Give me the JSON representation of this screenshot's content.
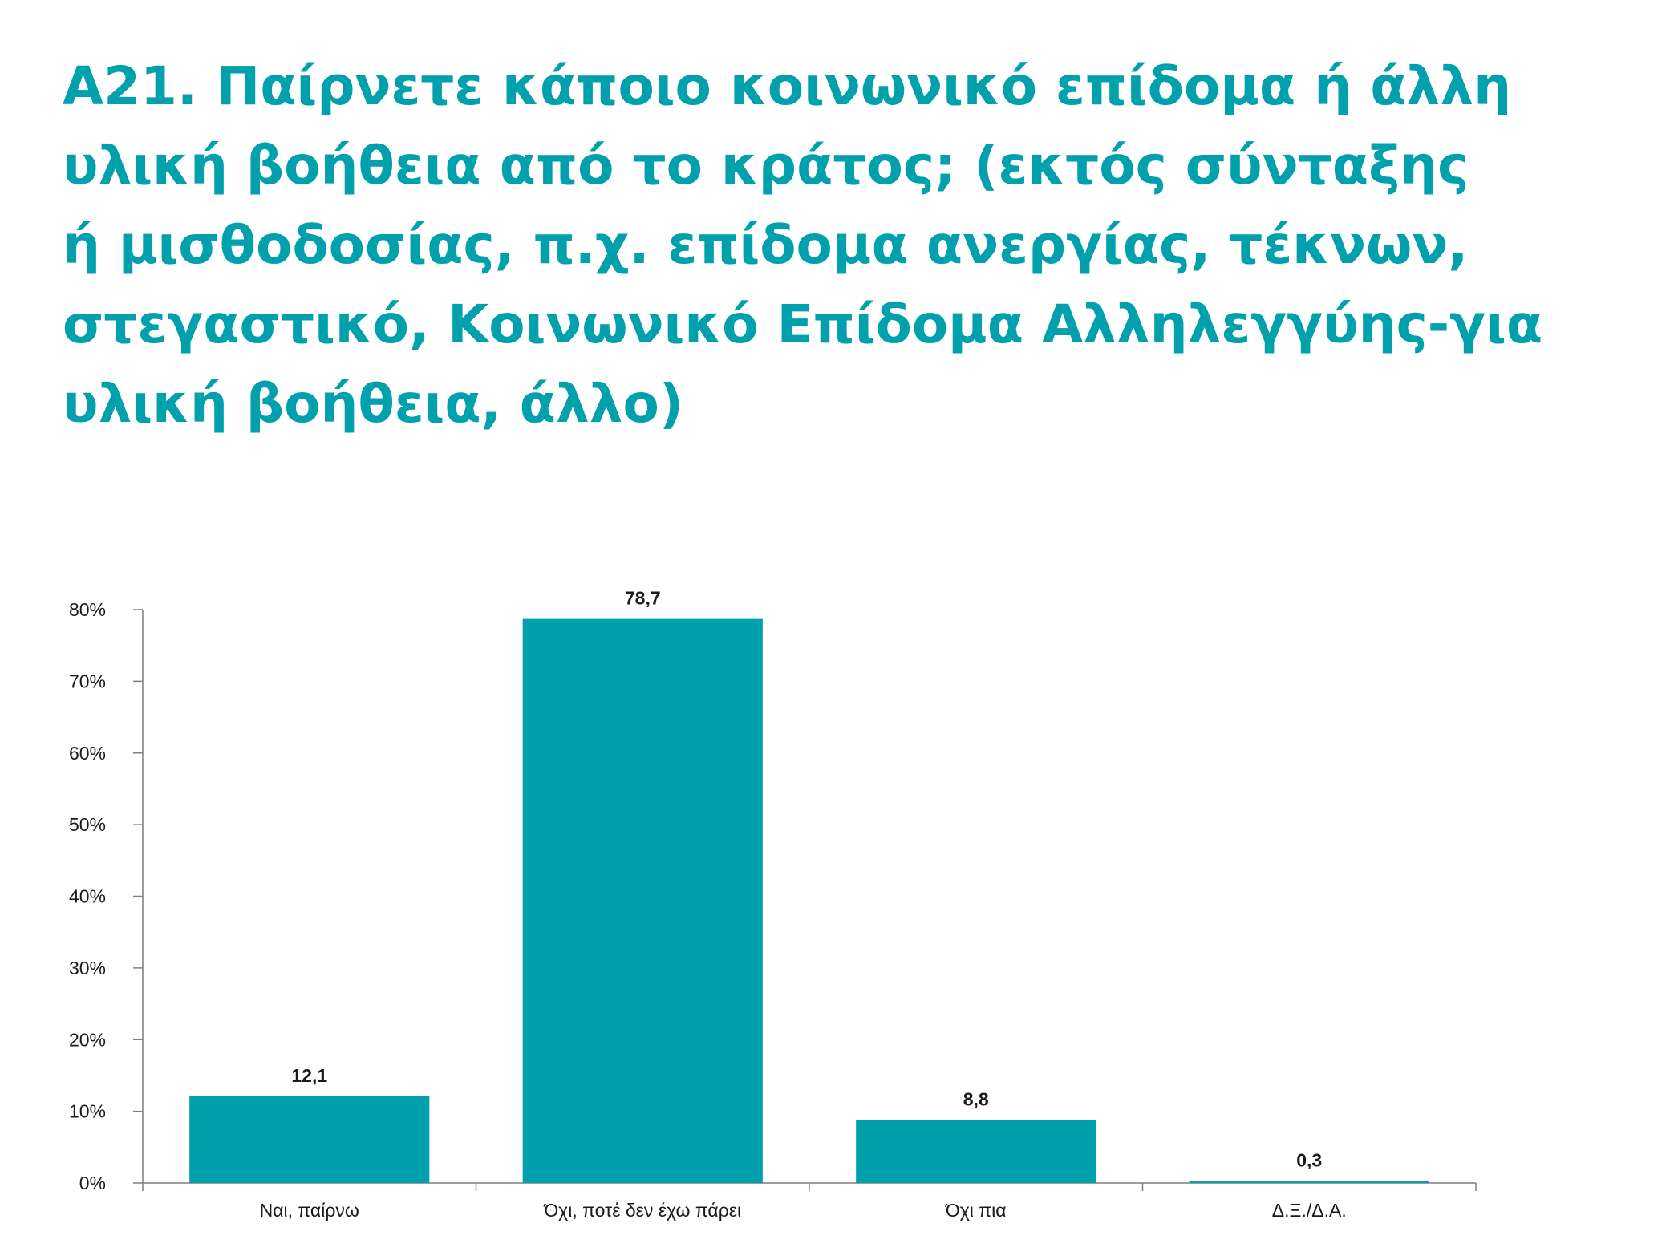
{
  "colors": {
    "accent": "#00a0ad",
    "axis": "#7f7f7f",
    "text": "#1a1a1a"
  },
  "title_lines": [
    "Α21. Παίρνετε κάποιο κοινωνικό επίδομα ή άλλη",
    "υλική βοήθεια από το κράτος; (εκτός σύνταξης",
    "ή μισθοδοσίας, π.χ. επίδομα ανεργίας, τέκνων,",
    "στεγαστικό, Κοινωνικό Επίδομα Αλληλεγγύης-για",
    "υλική βοήθεια, άλλο)"
  ],
  "chart_data": {
    "type": "bar",
    "title": "Α21. Παίρνετε κάποιο κοινωνικό επίδομα ή άλλη υλική βοήθεια από το κράτος; (εκτός σύνταξης ή μισθοδοσίας, π.χ. επίδομα ανεργίας, τέκνων, στεγαστικό, Κοινωνικό Επίδομα Αλληλεγγύης-για υλική βοήθεια, άλλο)",
    "categories": [
      "Ναι, παίρνω",
      "Όχι, ποτέ δεν έχω πάρει",
      "Όχι πια",
      "Δ.Ξ./Δ.Α."
    ],
    "values": [
      12.1,
      78.7,
      8.8,
      0.3
    ],
    "data_labels": [
      "12,1",
      "78,7",
      "8,8",
      "0,3"
    ],
    "xlabel": "",
    "ylabel": "",
    "ylim": [
      0,
      80
    ],
    "yticks": [
      0,
      10,
      20,
      30,
      40,
      50,
      60,
      70,
      80
    ],
    "ytick_labels": [
      "0%",
      "10%",
      "20%",
      "30%",
      "40%",
      "50%",
      "60%",
      "70%",
      "80%"
    ],
    "grid": false,
    "legend": "none"
  }
}
